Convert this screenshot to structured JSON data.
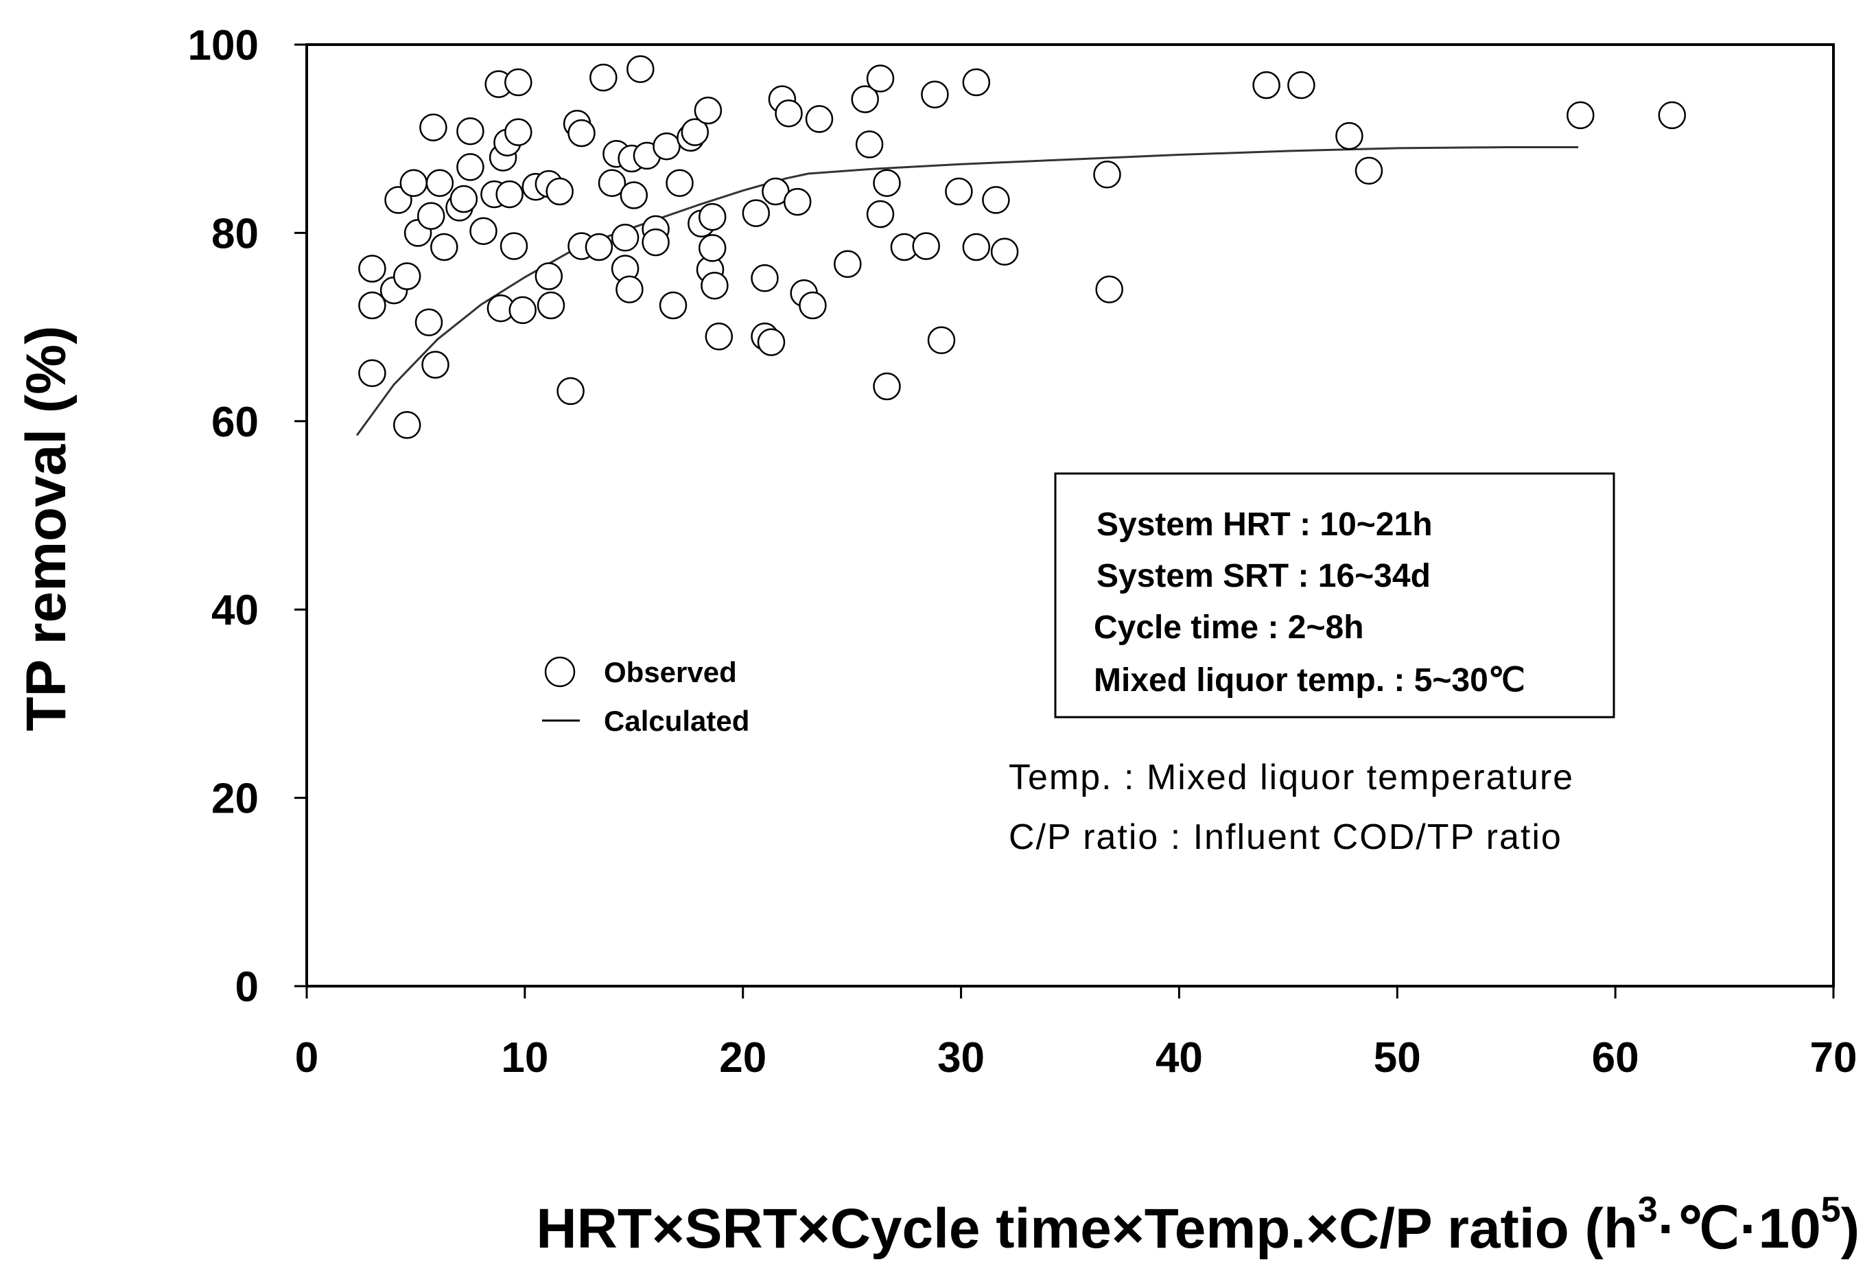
{
  "chart_data": {
    "type": "scatter",
    "title": "",
    "xlabel": "HRT×SRT×Cycle time×Temp.×C/P ratio (h",
    "xlabel_unit_base": "·℃·10",
    "xlabel_exp1": "3",
    "xlabel_exp2": "5",
    "xlabel_close": ")",
    "ylabel": "TP removal (%)",
    "xlim": [
      0,
      70
    ],
    "ylim": [
      0,
      100
    ],
    "x_ticks": [
      0,
      10,
      20,
      30,
      40,
      50,
      60,
      70
    ],
    "y_ticks": [
      0,
      20,
      40,
      60,
      80,
      100
    ],
    "x_tick_labels": [
      "0",
      "10",
      "20",
      "30",
      "40",
      "50",
      "60",
      "70"
    ],
    "y_tick_labels": [
      "0",
      "20",
      "40",
      "60",
      "80",
      "100"
    ],
    "grid": false,
    "legend": {
      "position": "center-left",
      "entries": [
        {
          "label": "Observed",
          "marker": "circle"
        },
        {
          "label": "Calculated",
          "marker": "line"
        }
      ]
    },
    "series": [
      {
        "name": "Observed",
        "kind": "scatter",
        "points": [
          [
            3.0,
            76.2
          ],
          [
            3.0,
            72.3
          ],
          [
            3.0,
            65.1
          ],
          [
            4.0,
            73.9
          ],
          [
            4.2,
            83.5
          ],
          [
            4.6,
            75.4
          ],
          [
            4.6,
            59.6
          ],
          [
            4.9,
            85.3
          ],
          [
            5.1,
            80.0
          ],
          [
            5.6,
            70.5
          ],
          [
            5.7,
            81.8
          ],
          [
            5.8,
            91.2
          ],
          [
            5.9,
            66.0
          ],
          [
            6.1,
            85.3
          ],
          [
            6.3,
            78.5
          ],
          [
            7.0,
            82.7
          ],
          [
            7.2,
            83.6
          ],
          [
            7.5,
            90.8
          ],
          [
            7.5,
            87.0
          ],
          [
            8.1,
            80.2
          ],
          [
            8.6,
            84.1
          ],
          [
            8.8,
            95.8
          ],
          [
            8.9,
            72.0
          ],
          [
            9.0,
            88.0
          ],
          [
            9.2,
            89.6
          ],
          [
            9.3,
            84.1
          ],
          [
            9.5,
            78.6
          ],
          [
            9.7,
            96.0
          ],
          [
            9.7,
            90.7
          ],
          [
            9.9,
            71.8
          ],
          [
            10.5,
            84.9
          ],
          [
            11.1,
            85.2
          ],
          [
            11.1,
            75.4
          ],
          [
            11.2,
            72.3
          ],
          [
            11.6,
            84.4
          ],
          [
            12.1,
            63.2
          ],
          [
            12.4,
            91.6
          ],
          [
            12.6,
            90.6
          ],
          [
            12.6,
            78.6
          ],
          [
            13.4,
            78.5
          ],
          [
            13.6,
            96.5
          ],
          [
            14.0,
            85.3
          ],
          [
            14.2,
            88.4
          ],
          [
            14.6,
            79.5
          ],
          [
            14.6,
            76.2
          ],
          [
            14.8,
            74.0
          ],
          [
            14.9,
            87.9
          ],
          [
            15.0,
            84.0
          ],
          [
            15.3,
            97.4
          ],
          [
            15.6,
            88.2
          ],
          [
            16.0,
            80.4
          ],
          [
            16.0,
            79.0
          ],
          [
            16.5,
            89.2
          ],
          [
            16.8,
            72.3
          ],
          [
            17.1,
            85.3
          ],
          [
            17.6,
            90.1
          ],
          [
            17.8,
            90.7
          ],
          [
            18.1,
            81.0
          ],
          [
            18.4,
            93.0
          ],
          [
            18.5,
            76.1
          ],
          [
            18.6,
            81.7
          ],
          [
            18.6,
            78.4
          ],
          [
            18.7,
            74.4
          ],
          [
            18.9,
            69.0
          ],
          [
            20.6,
            82.1
          ],
          [
            21.0,
            75.2
          ],
          [
            21.0,
            69.0
          ],
          [
            21.3,
            68.4
          ],
          [
            21.5,
            84.4
          ],
          [
            21.8,
            94.2
          ],
          [
            22.1,
            92.7
          ],
          [
            22.5,
            83.3
          ],
          [
            22.8,
            73.6
          ],
          [
            23.2,
            72.3
          ],
          [
            23.5,
            92.1
          ],
          [
            24.8,
            76.7
          ],
          [
            25.6,
            94.2
          ],
          [
            25.8,
            89.4
          ],
          [
            26.3,
            96.4
          ],
          [
            26.3,
            82.0
          ],
          [
            26.6,
            85.3
          ],
          [
            26.6,
            63.7
          ],
          [
            27.4,
            78.5
          ],
          [
            28.4,
            78.6
          ],
          [
            28.8,
            94.7
          ],
          [
            29.1,
            68.6
          ],
          [
            29.9,
            84.4
          ],
          [
            30.7,
            96.0
          ],
          [
            30.7,
            78.5
          ],
          [
            31.6,
            83.5
          ],
          [
            32.0,
            78.0
          ],
          [
            36.7,
            86.2
          ],
          [
            36.8,
            74.0
          ],
          [
            44.0,
            95.7
          ],
          [
            45.6,
            95.7
          ],
          [
            47.8,
            90.3
          ],
          [
            48.7,
            86.6
          ],
          [
            58.4,
            92.5
          ],
          [
            62.6,
            92.5
          ]
        ]
      },
      {
        "name": "Calculated",
        "kind": "line",
        "points": [
          [
            2.3,
            58.5
          ],
          [
            4,
            63.9
          ],
          [
            6,
            68.7
          ],
          [
            8,
            72.4
          ],
          [
            10,
            75.3
          ],
          [
            12,
            77.9
          ],
          [
            14,
            79.8
          ],
          [
            16,
            81.4
          ],
          [
            18,
            83.0
          ],
          [
            20,
            84.5
          ],
          [
            22,
            85.8
          ],
          [
            23,
            86.3
          ],
          [
            26,
            86.8
          ],
          [
            30,
            87.3
          ],
          [
            35,
            87.8
          ],
          [
            40,
            88.3
          ],
          [
            45,
            88.7
          ],
          [
            50,
            89.0
          ],
          [
            55,
            89.1
          ],
          [
            58.3,
            89.1
          ]
        ]
      }
    ],
    "annotations": {
      "box": [
        "System HRT : 10~21h",
        "System SRT : 16~34d",
        "Cycle time : 2~8h",
        "Mixed liquor temp. : 5~30℃"
      ],
      "notes": [
        "Temp. : Mixed liquor temperature",
        "C/P ratio : Influent COD/TP ratio"
      ]
    }
  }
}
